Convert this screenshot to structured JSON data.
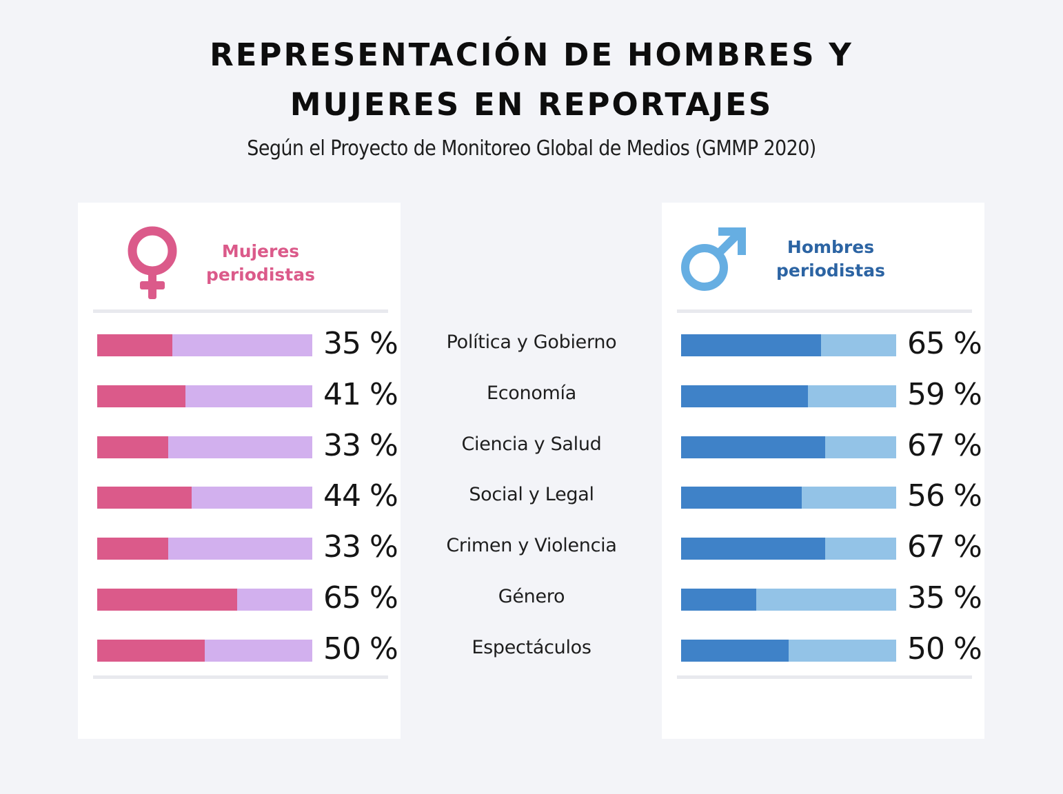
{
  "title_line1": "REPRESENTACIÓN DE HOMBRES Y",
  "title_line2": "MUJERES EN REPORTAJES",
  "subtitle": "Según el Proyecto de Monitoreo Global de Medios (GMMP 2020)",
  "colors": {
    "women_fill": "#db5a8a",
    "women_track": "#d2b0ee",
    "men_fill": "#3f82c8",
    "men_track": "#93c3e7",
    "women_label": "#db5a8a",
    "men_label": "#2c64a3",
    "men_icon": "#66aee2",
    "women_icon": "#db5a8a"
  },
  "women": {
    "icon": "female-symbol-icon",
    "label_line1": "Mujeres",
    "label_line2": "periodistas"
  },
  "men": {
    "icon": "male-symbol-icon",
    "label_line1": "Hombres",
    "label_line2": "periodistas"
  },
  "chart_data": {
    "type": "bar",
    "title": "REPRESENTACIÓN DE HOMBRES Y MUJERES EN REPORTAJES",
    "subtitle": "Según el Proyecto de Monitoreo Global de Medios (GMMP 2020)",
    "categories": [
      "Política y Gobierno",
      "Economía",
      "Ciencia y Salud",
      "Social y Legal",
      "Crimen y Violencia",
      "Género",
      "Espectáculos"
    ],
    "series": [
      {
        "name": "Mujeres periodistas",
        "values": [
          35,
          41,
          33,
          44,
          33,
          65,
          50
        ],
        "labels": [
          "35 %",
          "41 %",
          "33 %",
          "44 %",
          "33 %",
          "65 %",
          "50 %"
        ]
      },
      {
        "name": "Hombres periodistas",
        "values": [
          65,
          59,
          67,
          56,
          67,
          35,
          50
        ],
        "labels": [
          "65 %",
          "59 %",
          "67 %",
          "56 %",
          "67 %",
          "35 %",
          "50 %"
        ]
      }
    ],
    "xlabel": "",
    "ylabel": "",
    "xlim": [
      0,
      100
    ],
    "grid": false,
    "orientation": "horizontal",
    "legend": "top"
  }
}
